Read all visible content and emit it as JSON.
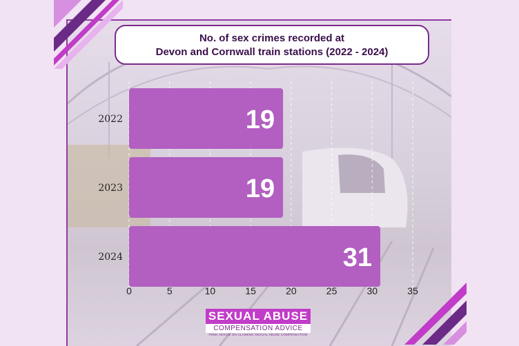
{
  "title_lines": [
    "No. of sex crimes recorded at",
    "Devon and Cornwall train stations (2022 - 2024)"
  ],
  "logo": {
    "main": "SEXUAL ABUSE",
    "sub": "COMPENSATION ADVICE",
    "tagline": "FREE ADVICE ON CLAIMING SEXUAL ABUSE COMPENSATION"
  },
  "colors": {
    "bar": "#b25fc1",
    "accent": "#8e3aa0",
    "stripe_dark": "#6a2a86",
    "stripe_light": "#d78fe0"
  },
  "chart_data": {
    "type": "bar",
    "orientation": "horizontal",
    "title": "No. of sex crimes recorded at Devon and Cornwall train stations (2022 - 2024)",
    "categories": [
      "2022",
      "2023",
      "2024"
    ],
    "values": [
      19,
      19,
      31
    ],
    "data_labels": [
      "19",
      "19",
      "31"
    ],
    "xlabel": "",
    "ylabel": "",
    "xlim": [
      0,
      35
    ],
    "x_ticks": [
      "0",
      "5",
      "10",
      "15",
      "20",
      "25",
      "30",
      "35"
    ],
    "grid": true
  }
}
